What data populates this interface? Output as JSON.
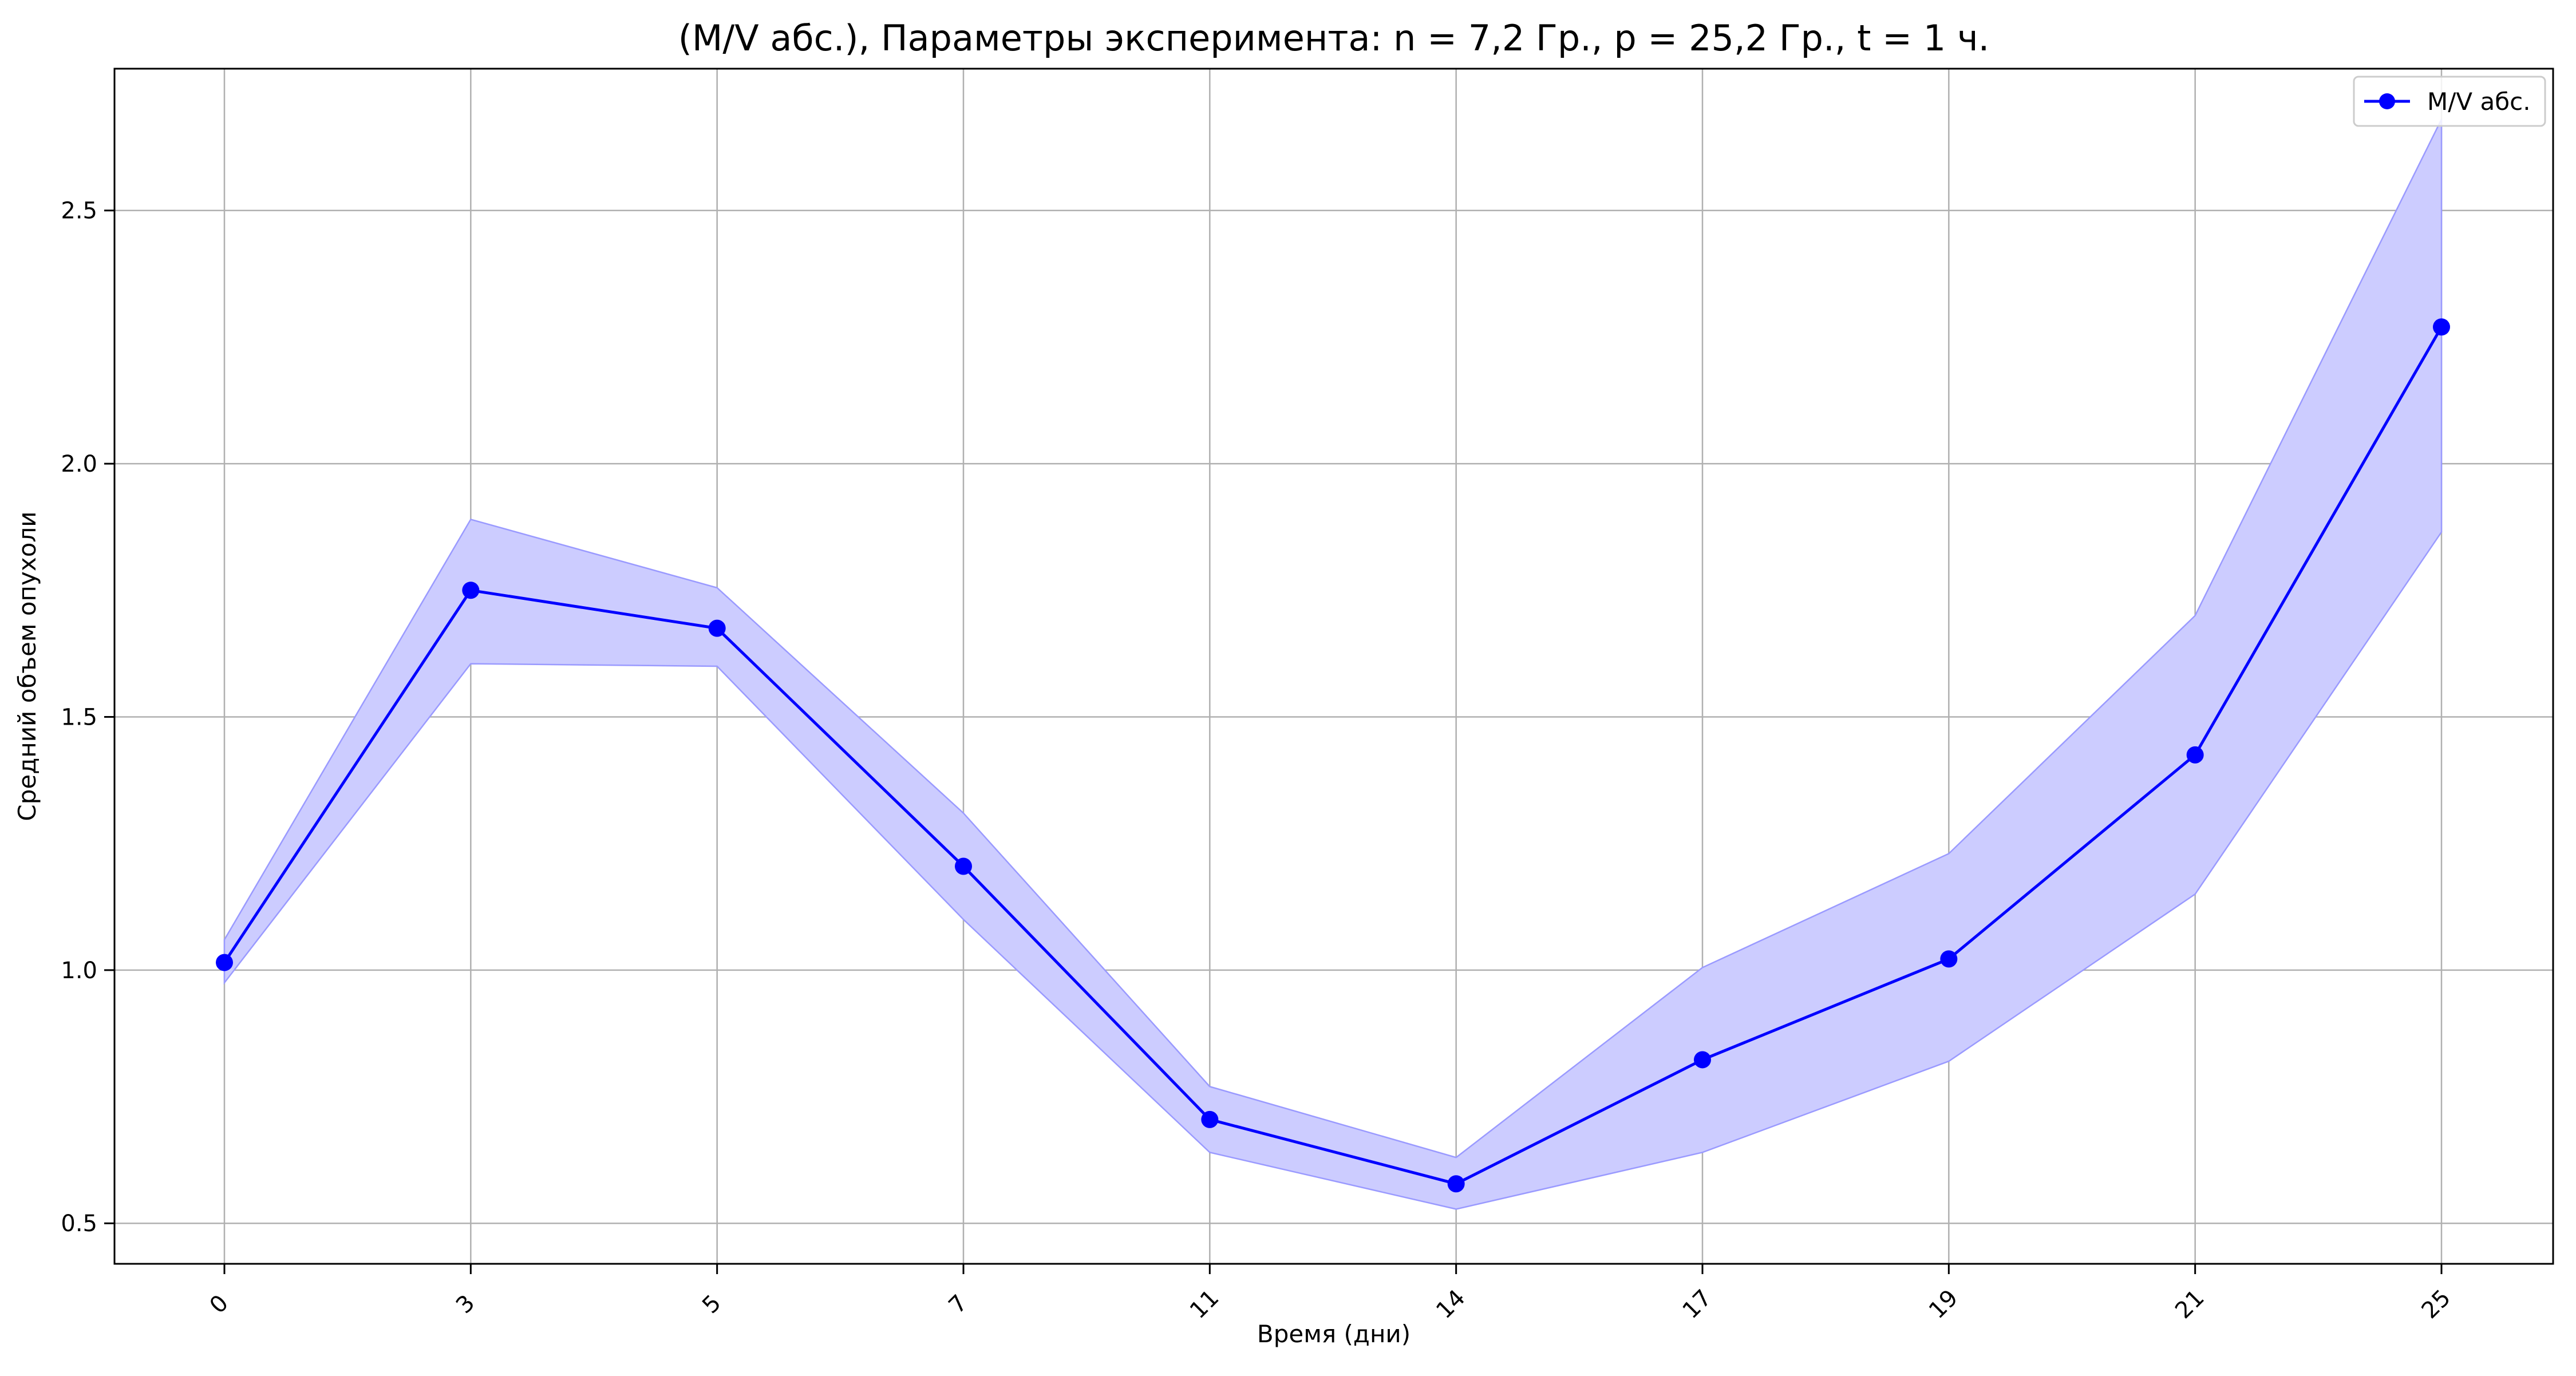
{
  "chart_data": {
    "type": "line",
    "title": "(M/V абс.), Параметры эксперимента: n = 7,2 Гр., p = 25,2 Гр., t = 1 ч.",
    "xlabel": "Время (дни)",
    "ylabel": "Средний объем опухоли",
    "categories": [
      "0",
      "3",
      "5",
      "7",
      "11",
      "14",
      "17",
      "19",
      "21",
      "25"
    ],
    "y_ticks": [
      "0.5",
      "1.0",
      "1.5",
      "2.0",
      "2.5"
    ],
    "ylim": [
      0.42,
      2.78
    ],
    "grid": true,
    "legend_position": "top-right",
    "series": [
      {
        "name": "M/V абс.",
        "color": "#0000ff",
        "values": [
          1.015,
          1.75,
          1.675,
          1.205,
          0.705,
          0.578,
          0.823,
          1.022,
          1.425,
          2.27
        ],
        "band_lower": [
          0.975,
          1.605,
          1.6,
          1.1,
          0.64,
          0.528,
          0.64,
          0.82,
          1.15,
          1.865
        ],
        "band_upper": [
          1.06,
          1.89,
          1.755,
          1.31,
          0.77,
          0.63,
          1.005,
          1.23,
          1.7,
          2.68
        ],
        "band_color": "#ccccff"
      }
    ]
  }
}
